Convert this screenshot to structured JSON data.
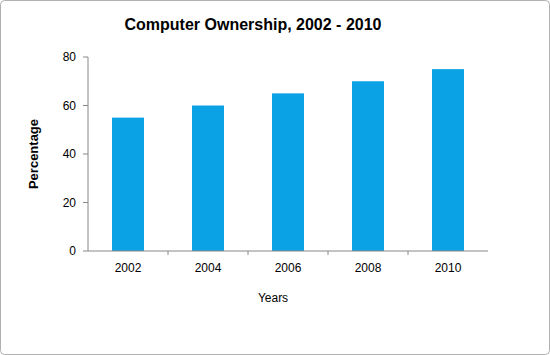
{
  "chart_data": {
    "type": "bar",
    "title": "Computer Ownership, 2002 - 2010",
    "x_label": "Years",
    "y_label": "Percentage",
    "categories": [
      "2002",
      "2004",
      "2006",
      "2008",
      "2010"
    ],
    "values": [
      55,
      60,
      65,
      70,
      75
    ],
    "color": "#0aa2e4",
    "ylim": [
      0,
      80
    ],
    "yticks": [
      0,
      20,
      40,
      60,
      80
    ],
    "grid": false
  }
}
